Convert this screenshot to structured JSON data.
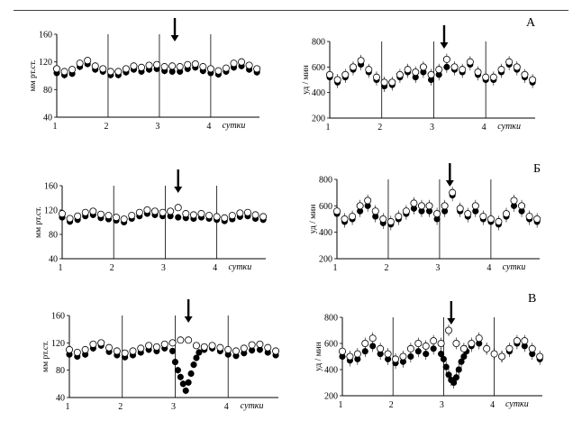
{
  "figure": {
    "panel_letters": [
      "А",
      "Б",
      "В"
    ],
    "day_ticks": [
      "1",
      "2",
      "3",
      "4"
    ],
    "x_axis_label": "сутки",
    "bp_axis_label": "мм рт.ст.",
    "hr_axis_label": "уд / мин",
    "bp_ticks": [
      "40",
      "80",
      "120",
      "160"
    ],
    "hr_ticks": [
      "200",
      "400",
      "600",
      "800"
    ],
    "colors": {
      "axis": "#000000",
      "filled_marker": "#000000",
      "open_marker": "#ffffff"
    }
  },
  "chart_data": [
    {
      "type": "scatter",
      "panel": "А",
      "row": 0,
      "col": 0,
      "kind": "bp",
      "ylim": [
        40,
        160
      ],
      "xlim": [
        1,
        4.95
      ],
      "grid": false,
      "arrow_day": 3.3,
      "series": [
        {
          "x": [
            1.0,
            1.15,
            1.3,
            1.45,
            1.6,
            1.75,
            1.9,
            2.05,
            2.2,
            2.35,
            2.5,
            2.65,
            2.8,
            2.95,
            3.1,
            3.25,
            3.4,
            3.55,
            3.7,
            3.85,
            4.0,
            4.15,
            4.3,
            4.45,
            4.6,
            4.75,
            4.9
          ],
          "values": [
            104,
            101,
            103,
            113,
            117,
            109,
            106,
            101,
            101,
            105,
            109,
            106,
            109,
            110,
            107,
            106,
            106,
            110,
            112,
            107,
            104,
            102,
            106,
            112,
            114,
            109,
            105
          ]
        },
        {
          "x": [
            1.0,
            1.15,
            1.3,
            1.45,
            1.6,
            1.75,
            1.9,
            2.05,
            2.2,
            2.35,
            2.5,
            2.65,
            2.8,
            2.95,
            3.1,
            3.25,
            3.4,
            3.55,
            3.7,
            3.85,
            4.0,
            4.15,
            4.3,
            4.45,
            4.6,
            4.75,
            4.9
          ],
          "values": [
            110,
            106,
            109,
            118,
            122,
            114,
            110,
            106,
            106,
            110,
            114,
            112,
            115,
            116,
            113,
            114,
            113,
            116,
            117,
            113,
            110,
            107,
            111,
            118,
            120,
            115,
            110
          ]
        }
      ]
    },
    {
      "type": "scatter",
      "panel": "А",
      "row": 0,
      "col": 1,
      "kind": "hr",
      "ylim": [
        200,
        800
      ],
      "xlim": [
        1,
        4.95
      ],
      "grid": false,
      "arrow_day": 3.2,
      "series": [
        {
          "x": [
            1.0,
            1.15,
            1.3,
            1.45,
            1.6,
            1.75,
            1.9,
            2.05,
            2.2,
            2.35,
            2.5,
            2.65,
            2.8,
            2.95,
            3.1,
            3.25,
            3.4,
            3.55,
            3.7,
            3.85,
            4.0,
            4.15,
            4.3,
            4.45,
            4.6,
            4.75,
            4.9
          ],
          "values": [
            520,
            480,
            520,
            580,
            620,
            560,
            500,
            450,
            460,
            520,
            560,
            520,
            560,
            500,
            540,
            600,
            580,
            560,
            620,
            540,
            500,
            500,
            560,
            620,
            580,
            520,
            480
          ]
        },
        {
          "x": [
            1.0,
            1.15,
            1.3,
            1.45,
            1.6,
            1.75,
            1.9,
            2.05,
            2.2,
            2.35,
            2.5,
            2.65,
            2.8,
            2.95,
            3.1,
            3.25,
            3.4,
            3.55,
            3.7,
            3.85,
            4.0,
            4.15,
            4.3,
            4.45,
            4.6,
            4.75,
            4.9
          ],
          "values": [
            540,
            500,
            540,
            600,
            650,
            580,
            520,
            480,
            480,
            540,
            580,
            560,
            600,
            540,
            580,
            660,
            600,
            580,
            640,
            560,
            520,
            520,
            580,
            640,
            600,
            540,
            500
          ]
        }
      ]
    },
    {
      "type": "scatter",
      "panel": "Б",
      "row": 1,
      "col": 0,
      "kind": "bp",
      "ylim": [
        40,
        160
      ],
      "xlim": [
        1,
        4.95
      ],
      "grid": false,
      "arrow_day": 3.25,
      "series": [
        {
          "x": [
            1.0,
            1.15,
            1.3,
            1.45,
            1.6,
            1.75,
            1.9,
            2.05,
            2.2,
            2.35,
            2.5,
            2.65,
            2.8,
            2.95,
            3.1,
            3.25,
            3.4,
            3.55,
            3.7,
            3.85,
            4.0,
            4.15,
            4.3,
            4.45,
            4.6,
            4.75,
            4.9
          ],
          "values": [
            108,
            101,
            104,
            110,
            112,
            107,
            105,
            103,
            100,
            106,
            110,
            114,
            112,
            110,
            110,
            108,
            107,
            106,
            108,
            106,
            104,
            102,
            105,
            109,
            110,
            106,
            104
          ]
        },
        {
          "x": [
            1.0,
            1.15,
            1.3,
            1.45,
            1.6,
            1.75,
            1.9,
            2.05,
            2.2,
            2.35,
            2.5,
            2.65,
            2.8,
            2.95,
            3.1,
            3.25,
            3.4,
            3.55,
            3.7,
            3.85,
            4.0,
            4.15,
            4.3,
            4.45,
            4.6,
            4.75,
            4.9
          ],
          "values": [
            114,
            106,
            110,
            116,
            118,
            113,
            111,
            108,
            105,
            111,
            116,
            120,
            118,
            116,
            118,
            124,
            114,
            112,
            114,
            111,
            109,
            107,
            111,
            115,
            116,
            112,
            109
          ]
        }
      ]
    },
    {
      "type": "scatter",
      "panel": "Б",
      "row": 1,
      "col": 1,
      "kind": "hr",
      "ylim": [
        200,
        800
      ],
      "xlim": [
        1,
        4.95
      ],
      "grid": false,
      "arrow_day": 3.2,
      "series": [
        {
          "x": [
            1.0,
            1.15,
            1.3,
            1.45,
            1.6,
            1.75,
            1.9,
            2.05,
            2.2,
            2.35,
            2.5,
            2.65,
            2.8,
            2.95,
            3.1,
            3.25,
            3.4,
            3.55,
            3.7,
            3.85,
            4.0,
            4.15,
            4.3,
            4.45,
            4.6,
            4.75,
            4.9
          ],
          "values": [
            540,
            480,
            500,
            560,
            600,
            520,
            470,
            460,
            500,
            540,
            580,
            560,
            560,
            500,
            560,
            680,
            560,
            520,
            560,
            500,
            480,
            460,
            520,
            600,
            560,
            500,
            480
          ]
        },
        {
          "x": [
            1.0,
            1.15,
            1.3,
            1.45,
            1.6,
            1.75,
            1.9,
            2.05,
            2.2,
            2.35,
            2.5,
            2.65,
            2.8,
            2.95,
            3.1,
            3.25,
            3.4,
            3.55,
            3.7,
            3.85,
            4.0,
            4.15,
            4.3,
            4.45,
            4.6,
            4.75,
            4.9
          ],
          "values": [
            560,
            500,
            520,
            600,
            640,
            560,
            500,
            480,
            520,
            560,
            620,
            600,
            600,
            540,
            600,
            700,
            580,
            540,
            600,
            520,
            500,
            480,
            540,
            640,
            600,
            520,
            500
          ]
        }
      ]
    },
    {
      "type": "scatter",
      "panel": "В",
      "row": 2,
      "col": 0,
      "kind": "bp",
      "ylim": [
        40,
        160
      ],
      "xlim": [
        1,
        4.95
      ],
      "grid": false,
      "arrow_day": 3.25,
      "series": [
        {
          "x": [
            1.0,
            1.15,
            1.3,
            1.45,
            1.6,
            1.75,
            1.9,
            2.05,
            2.2,
            2.35,
            2.5,
            2.65,
            2.8,
            2.95,
            3.0,
            3.05,
            3.1,
            3.15,
            3.2,
            3.25,
            3.3,
            3.35,
            3.4,
            3.45,
            3.55,
            3.7,
            3.85,
            4.0,
            4.15,
            4.3,
            4.45,
            4.6,
            4.75,
            4.9
          ],
          "values": [
            103,
            100,
            103,
            112,
            116,
            107,
            102,
            99,
            102,
            106,
            110,
            108,
            112,
            108,
            92,
            80,
            70,
            60,
            50,
            62,
            75,
            88,
            98,
            106,
            110,
            112,
            108,
            103,
            101,
            105,
            109,
            110,
            106,
            102
          ]
        },
        {
          "x": [
            1.0,
            1.15,
            1.3,
            1.45,
            1.6,
            1.75,
            1.9,
            2.05,
            2.2,
            2.35,
            2.5,
            2.65,
            2.8,
            2.95,
            3.1,
            3.25,
            3.4,
            3.55,
            3.7,
            3.85,
            4.0,
            4.15,
            4.3,
            4.45,
            4.6,
            4.75,
            4.9
          ],
          "values": [
            110,
            106,
            110,
            118,
            120,
            113,
            108,
            105,
            108,
            112,
            116,
            114,
            118,
            120,
            124,
            124,
            116,
            114,
            116,
            113,
            110,
            108,
            112,
            117,
            118,
            113,
            108
          ]
        }
      ]
    },
    {
      "type": "scatter",
      "panel": "В",
      "row": 2,
      "col": 1,
      "kind": "hr",
      "ylim": [
        200,
        800
      ],
      "xlim": [
        1,
        4.95
      ],
      "grid": false,
      "arrow_day": 3.15,
      "series": [
        {
          "x": [
            1.0,
            1.15,
            1.3,
            1.45,
            1.6,
            1.75,
            1.9,
            2.05,
            2.2,
            2.35,
            2.5,
            2.65,
            2.8,
            2.95,
            3.0,
            3.05,
            3.1,
            3.15,
            3.2,
            3.25,
            3.3,
            3.35,
            3.4,
            3.45,
            3.55,
            3.7,
            3.85,
            4.0,
            4.15,
            4.3,
            4.45,
            4.6,
            4.75,
            4.9
          ],
          "values": [
            500,
            470,
            480,
            540,
            580,
            520,
            480,
            450,
            460,
            500,
            540,
            520,
            560,
            520,
            480,
            420,
            360,
            320,
            300,
            340,
            400,
            460,
            500,
            540,
            580,
            600,
            560,
            520,
            500,
            540,
            600,
            580,
            520,
            480
          ]
        },
        {
          "x": [
            1.0,
            1.15,
            1.3,
            1.45,
            1.6,
            1.75,
            1.9,
            2.05,
            2.2,
            2.35,
            2.5,
            2.65,
            2.8,
            2.95,
            3.1,
            3.25,
            3.4,
            3.55,
            3.7,
            3.85,
            4.0,
            4.15,
            4.3,
            4.45,
            4.6,
            4.75,
            4.9
          ],
          "values": [
            540,
            500,
            520,
            600,
            640,
            560,
            520,
            480,
            500,
            560,
            600,
            580,
            620,
            600,
            700,
            600,
            560,
            600,
            640,
            560,
            520,
            500,
            560,
            620,
            620,
            560,
            500
          ]
        }
      ]
    }
  ]
}
